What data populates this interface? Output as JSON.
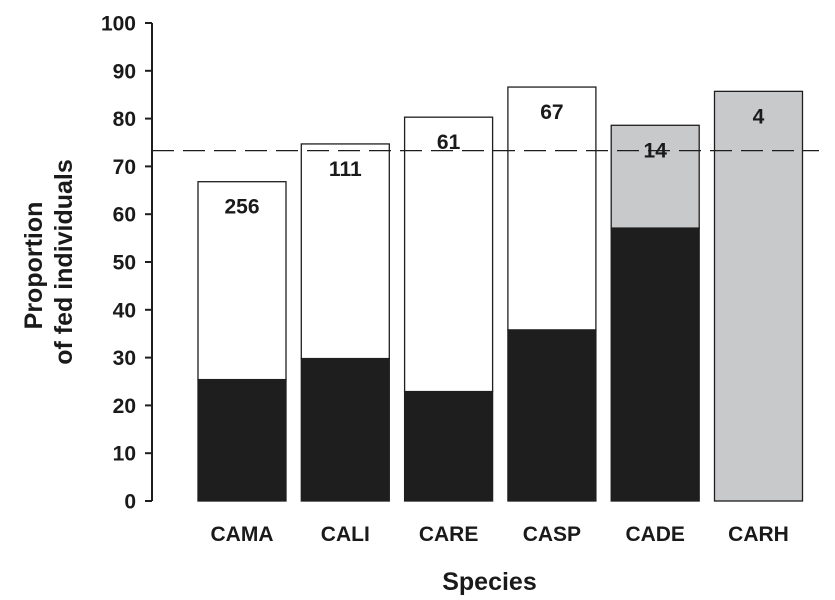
{
  "chart_data": {
    "type": "bar",
    "stacked": true,
    "xlabel": "Species",
    "ylabel_lines": [
      "Proportion",
      "of fed individuals"
    ],
    "ylim": [
      0,
      100
    ],
    "yticks": [
      0,
      10,
      20,
      30,
      40,
      50,
      60,
      70,
      80,
      90,
      100
    ],
    "reference_line": {
      "y": 73.3,
      "style": "dashed"
    },
    "categories": [
      "CAMA",
      "CALI",
      "CARE",
      "CASP",
      "CADE",
      "CARH"
    ],
    "series": [
      {
        "color": "#1e1e1e",
        "values": [
          25.4,
          29.8,
          22.9,
          35.8,
          57.1,
          0
        ]
      },
      {
        "color": "#ffffff",
        "values": [
          41.4,
          44.9,
          57.4,
          50.8,
          0,
          0
        ]
      },
      {
        "color": "#c8c9cb",
        "values": [
          0,
          0,
          0,
          0,
          21.5,
          85.7
        ]
      }
    ],
    "totals": [
      66.8,
      74.7,
      80.3,
      86.6,
      78.6,
      85.7
    ],
    "bar_labels": [
      "256",
      "111",
      "61",
      "67",
      "14",
      "4"
    ],
    "grid": false,
    "legend": "none"
  }
}
